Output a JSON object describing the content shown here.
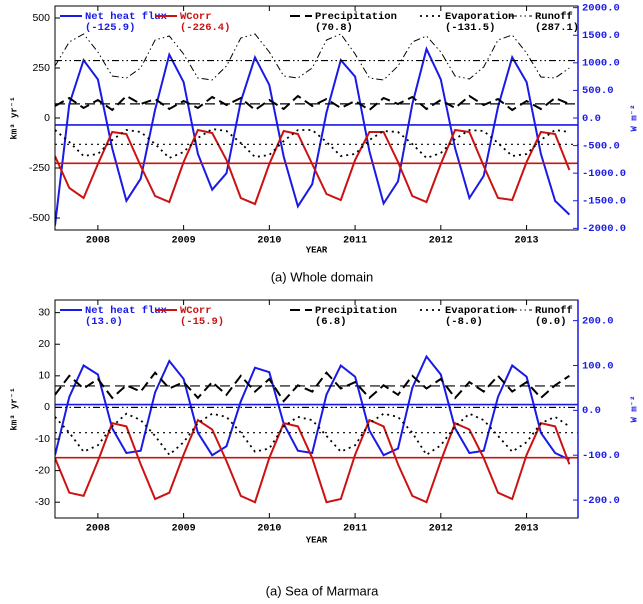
{
  "chart_data": [
    {
      "type": "line",
      "caption": "(a) Whole domain",
      "x_label": "YEAR",
      "y_label": "km³ yr⁻¹",
      "y2_label": "W m⁻²",
      "xlim": [
        2007.5,
        2013.6
      ],
      "xticks": [
        2008,
        2009,
        2010,
        2011,
        2012,
        2013
      ],
      "ylim": [
        -560,
        560
      ],
      "yticks": [
        -500,
        -250,
        0,
        250,
        500
      ],
      "y2lim": [
        -2030,
        2030
      ],
      "y2ticks": [
        {
          "value": -2000,
          "label": "-2000.0"
        },
        {
          "value": -1500,
          "label": "-1500.0"
        },
        {
          "value": -1000,
          "label": "-1000.0"
        },
        {
          "value": -500,
          "label": "-500.0"
        },
        {
          "value": 0,
          "label": "0.0"
        },
        {
          "value": 500,
          "label": "500.0"
        },
        {
          "value": 1000,
          "label": "1000.0"
        },
        {
          "value": 1500,
          "label": "1500.0"
        },
        {
          "value": 2000,
          "label": "2000.0"
        }
      ],
      "x": [
        2007.5,
        2007.667,
        2007.833,
        2008,
        2008.167,
        2008.333,
        2008.5,
        2008.667,
        2008.833,
        2009,
        2009.167,
        2009.333,
        2009.5,
        2009.667,
        2009.833,
        2010,
        2010.167,
        2010.333,
        2010.5,
        2010.667,
        2010.833,
        2011,
        2011.167,
        2011.333,
        2011.5,
        2011.667,
        2011.833,
        2012,
        2012.167,
        2012.333,
        2012.5,
        2012.667,
        2012.833,
        2013,
        2013.167,
        2013.333,
        2013.5
      ],
      "series": [
        {
          "name": "Net heat flux",
          "mean": -125.9,
          "mean_label": "(-125.9)",
          "color": "#1a1ae6",
          "dash": "solid",
          "axis": "y2",
          "values": [
            -1950,
            250,
            1050,
            700,
            -550,
            -1500,
            -1100,
            150,
            1150,
            650,
            -650,
            -1300,
            -1000,
            300,
            1100,
            600,
            -700,
            -1600,
            -1200,
            100,
            1050,
            750,
            -600,
            -1550,
            -1150,
            250,
            1250,
            700,
            -550,
            -1450,
            -1050,
            200,
            1100,
            650,
            -650,
            -1500,
            -1750
          ]
        },
        {
          "name": "WCorr",
          "mean": -226.4,
          "mean_label": "(-226.4)",
          "color": "#cc1111",
          "dash": "solid",
          "values": [
            -190,
            -350,
            -400,
            -230,
            -70,
            -80,
            -240,
            -390,
            -420,
            -220,
            -60,
            -75,
            -210,
            -400,
            -430,
            -230,
            -65,
            -80,
            -230,
            -380,
            -410,
            -210,
            -70,
            -70,
            -220,
            -390,
            -420,
            -230,
            -60,
            -70,
            -240,
            -400,
            -410,
            -220,
            -70,
            -80,
            -260
          ]
        },
        {
          "name": "Precipitation",
          "mean": 70.8,
          "mean_label": "(70.8)",
          "color": "#000000",
          "dash": "dashed",
          "values": [
            60,
            100,
            50,
            90,
            40,
            110,
            70,
            95,
            45,
            85,
            50,
            105,
            65,
            100,
            40,
            90,
            45,
            110,
            60,
            95,
            50,
            85,
            40,
            100,
            70,
            105,
            45,
            90,
            50,
            110,
            65,
            95,
            40,
            85,
            45,
            100,
            70
          ]
        },
        {
          "name": "Evaporation",
          "mean": -131.5,
          "mean_label": "(-131.5)",
          "color": "#000000",
          "dash": "dotted",
          "values": [
            -60,
            -120,
            -190,
            -180,
            -110,
            -60,
            -70,
            -130,
            -200,
            -170,
            -100,
            -55,
            -65,
            -125,
            -195,
            -185,
            -115,
            -60,
            -60,
            -120,
            -190,
            -180,
            -110,
            -65,
            -70,
            -130,
            -200,
            -175,
            -105,
            -60,
            -65,
            -125,
            -190,
            -180,
            -110,
            -60,
            -70
          ]
        },
        {
          "name": "Runoff",
          "mean": 287.1,
          "mean_label": "(287.1)",
          "color": "#000000",
          "dash": "dashdotdot",
          "values": [
            260,
            380,
            420,
            330,
            210,
            200,
            250,
            390,
            410,
            320,
            200,
            190,
            260,
            400,
            420,
            330,
            210,
            200,
            250,
            390,
            420,
            320,
            200,
            190,
            260,
            380,
            410,
            330,
            210,
            195,
            255,
            390,
            415,
            325,
            205,
            200,
            250
          ]
        }
      ]
    },
    {
      "type": "line",
      "caption": "(a) Sea of Marmara",
      "x_label": "YEAR",
      "y_label": "km³ yr⁻¹",
      "y2_label": "W m⁻²",
      "xlim": [
        2007.5,
        2013.6
      ],
      "xticks": [
        2008,
        2009,
        2010,
        2011,
        2012,
        2013
      ],
      "ylim": [
        -35,
        34
      ],
      "yticks": [
        -30,
        -20,
        -10,
        0,
        10,
        20,
        30
      ],
      "y2lim": [
        -240,
        246
      ],
      "y2ticks": [
        {
          "value": -200,
          "label": "-200.0"
        },
        {
          "value": -100,
          "label": "-100.0"
        },
        {
          "value": 0,
          "label": "0.0"
        },
        {
          "value": 100,
          "label": "100.0"
        },
        {
          "value": 200,
          "label": "200.0"
        }
      ],
      "x": [
        2007.5,
        2007.667,
        2007.833,
        2008,
        2008.167,
        2008.333,
        2008.5,
        2008.667,
        2008.833,
        2009,
        2009.167,
        2009.333,
        2009.5,
        2009.667,
        2009.833,
        2010,
        2010.167,
        2010.333,
        2010.5,
        2010.667,
        2010.833,
        2011,
        2011.167,
        2011.333,
        2011.5,
        2011.667,
        2011.833,
        2012,
        2012.167,
        2012.333,
        2012.5,
        2012.667,
        2012.833,
        2013,
        2013.167,
        2013.333,
        2013.5
      ],
      "series": [
        {
          "name": "Net heat flux",
          "mean": 13.0,
          "mean_label": "(13.0)",
          "color": "#1a1ae6",
          "dash": "solid",
          "axis": "y2",
          "values": [
            -100,
            30,
            100,
            80,
            -40,
            -95,
            -90,
            40,
            110,
            70,
            -50,
            -100,
            -80,
            20,
            95,
            85,
            -30,
            -90,
            -95,
            35,
            100,
            75,
            -45,
            -100,
            -85,
            50,
            120,
            80,
            -40,
            -95,
            -90,
            30,
            100,
            75,
            -50,
            -95,
            -110
          ]
        },
        {
          "name": "WCorr",
          "mean": -15.9,
          "mean_label": "(-15.9)",
          "color": "#cc1111",
          "dash": "solid",
          "values": [
            -16,
            -27,
            -28,
            -17,
            -5,
            -6,
            -18,
            -29,
            -27,
            -15,
            -4,
            -7,
            -17,
            -28,
            -30,
            -16,
            -5,
            -6,
            -16,
            -30,
            -29,
            -15,
            -4,
            -6,
            -18,
            -28,
            -30,
            -17,
            -5,
            -7,
            -16,
            -27,
            -29,
            -15,
            -5,
            -6,
            -18
          ]
        },
        {
          "name": "Precipitation",
          "mean": 6.8,
          "mean_label": "(6.8)",
          "color": "#000000",
          "dash": "dashed",
          "values": [
            4,
            10,
            6,
            9,
            3,
            7,
            5,
            11,
            6,
            8,
            3,
            8,
            4,
            10,
            5,
            9,
            2,
            7,
            5,
            11,
            6,
            8,
            3,
            7,
            4,
            10,
            6,
            9,
            3,
            8,
            5,
            10,
            5,
            8,
            3,
            7,
            10
          ]
        },
        {
          "name": "Evaporation",
          "mean": -8.0,
          "mean_label": "(-8.0)",
          "color": "#000000",
          "dash": "dotted",
          "values": [
            -3,
            -8,
            -14,
            -12,
            -6,
            -2,
            -4,
            -9,
            -15,
            -11,
            -5,
            -2,
            -3,
            -8,
            -14,
            -13,
            -6,
            -3,
            -4,
            -9,
            -14,
            -12,
            -5,
            -2,
            -3,
            -8,
            -15,
            -12,
            -6,
            -2,
            -4,
            -9,
            -14,
            -11,
            -5,
            -3,
            -6
          ]
        },
        {
          "name": "Runoff",
          "mean": 0.0,
          "mean_label": "(0.0)",
          "color": "#000000",
          "dash": "dashdotdot",
          "values": [
            0,
            0,
            0,
            0,
            0,
            0,
            0,
            0,
            0,
            0,
            0,
            0,
            0,
            0,
            0,
            0,
            0,
            0,
            0,
            0,
            0,
            0,
            0,
            0,
            0,
            0,
            0,
            0,
            0,
            0,
            0,
            0,
            0,
            0,
            0,
            0,
            0
          ]
        }
      ]
    }
  ]
}
